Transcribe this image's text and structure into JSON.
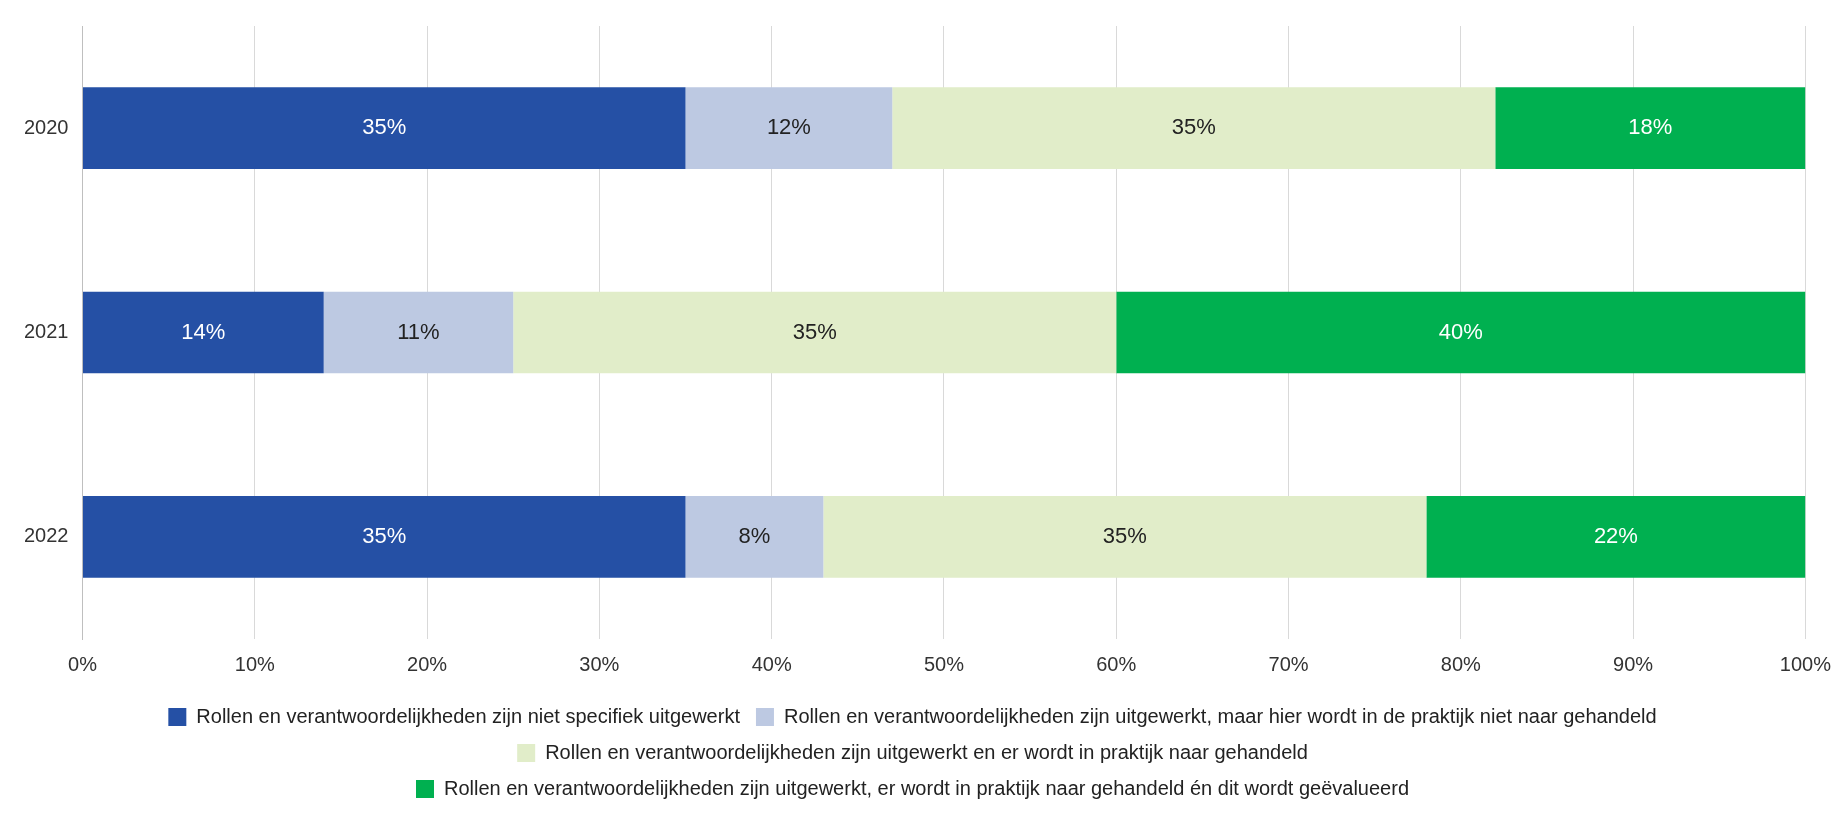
{
  "chart_data": {
    "type": "bar",
    "orientation": "horizontal",
    "stacked": true,
    "categories": [
      "2020",
      "2021",
      "2022"
    ],
    "series": [
      {
        "name": "Rollen en verantwoordelijkheden zijn niet specifiek uitgewerkt",
        "color": "#2550a5",
        "values": [
          35,
          14,
          35
        ],
        "value_labels": [
          "35%",
          "14%",
          "35%"
        ]
      },
      {
        "name": "Rollen en verantwoordelijkheden zijn uitgewerkt, maar hier wordt in de praktijk niet naar gehandeld",
        "color": "#bdc9e2",
        "values": [
          12,
          11,
          8
        ],
        "value_labels": [
          "12%",
          "11%",
          "8%"
        ]
      },
      {
        "name": "Rollen en verantwoordelijkheden zijn uitgewerkt en er wordt in praktijk naar gehandeld",
        "color": "#e1edc9",
        "values": [
          35,
          35,
          35
        ],
        "value_labels": [
          "35%",
          "35%",
          "35%"
        ]
      },
      {
        "name": "Rollen en verantwoordelijkheden zijn uitgewerkt, er wordt in praktijk naar gehandeld én dit wordt geëvalueerd",
        "color": "#00b050",
        "values": [
          18,
          40,
          22
        ],
        "value_labels": [
          "18%",
          "40%",
          "22%"
        ]
      }
    ],
    "xlim": [
      0,
      100
    ],
    "xticks": [
      {
        "value": 0,
        "label": "0%"
      },
      {
        "value": 10,
        "label": "10%"
      },
      {
        "value": 20,
        "label": "20%"
      },
      {
        "value": 30,
        "label": "30%"
      },
      {
        "value": 40,
        "label": "40%"
      },
      {
        "value": 50,
        "label": "50%"
      },
      {
        "value": 60,
        "label": "60%"
      },
      {
        "value": 70,
        "label": "70%"
      },
      {
        "value": 80,
        "label": "80%"
      },
      {
        "value": 90,
        "label": "90%"
      },
      {
        "value": 100,
        "label": "100%"
      }
    ],
    "grid": "x",
    "legend": "bottom"
  }
}
